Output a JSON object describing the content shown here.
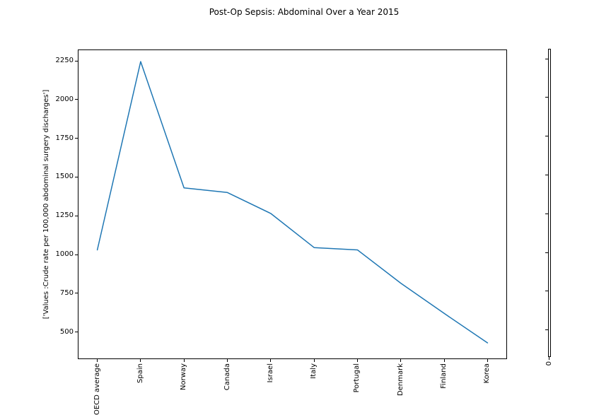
{
  "figure": {
    "background_color": "#ffffff",
    "text_color": "#000000",
    "spine_color": "#000000"
  },
  "chart_data": {
    "type": "line",
    "title": "Post-Op Sepsis: Abdominal Over a Year 2015",
    "ylabel": "['Values :Crude rate per 100,000 abdominal surgery discharges']",
    "xlabel": "",
    "categories": [
      "OECD average",
      "Spain",
      "Norway",
      "Canada",
      "Israel",
      "Italy",
      "Portugal",
      "Denmark",
      "Finland",
      "Korea"
    ],
    "series": [
      {
        "name": "Crude rate per 100,000 abdominal surgery discharges",
        "values": [
          1030,
          2245,
          1430,
          1400,
          1265,
          1045,
          1030,
          815,
          620,
          430
        ]
      }
    ],
    "yticks": [
      500,
      750,
      1000,
      1250,
      1500,
      1750,
      2000,
      2250
    ],
    "ylim": [
      325,
      2323
    ],
    "xtick_rotation": 90,
    "grid": false,
    "legend": "none",
    "line_color": "#1f77b4",
    "marker": "none"
  },
  "secondary_axis": {
    "x_tick_label": "0",
    "y_tick_count": 8
  }
}
